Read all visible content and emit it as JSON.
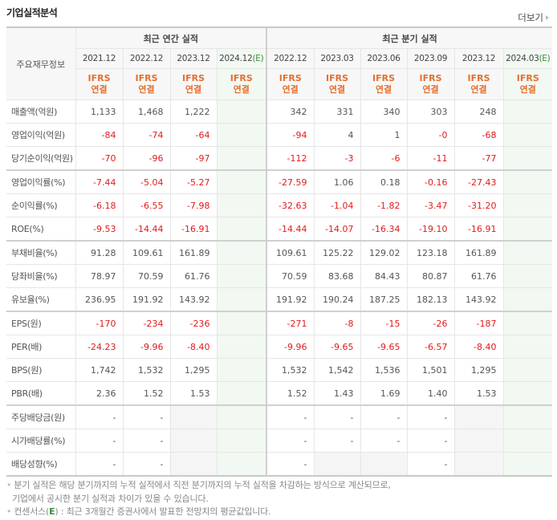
{
  "header": {
    "title": "기업실적분석",
    "more_label": "더보기"
  },
  "table": {
    "label_header": "주요재무정보",
    "groups": {
      "annual": "최근 연간 실적",
      "quarterly": "최근 분기 실적"
    },
    "annual_dates": [
      "2021.12",
      "2022.12",
      "2023.12",
      "2024.12"
    ],
    "quarterly_dates": [
      "2022.12",
      "2023.03",
      "2023.06",
      "2023.09",
      "2023.12",
      "2024.03"
    ],
    "estimate_mark": "(E)",
    "ifrs_line1": "IFRS",
    "ifrs_line2": "연결",
    "rows": [
      {
        "label": "매출액(억원)",
        "annual": [
          "1,133",
          "1,468",
          "1,222",
          ""
        ],
        "quarterly": [
          "342",
          "331",
          "340",
          "303",
          "248",
          ""
        ]
      },
      {
        "label": "영업이익(억원)",
        "annual": [
          "-84",
          "-74",
          "-64",
          ""
        ],
        "quarterly": [
          "-94",
          "4",
          "1",
          "-0",
          "-68",
          ""
        ]
      },
      {
        "label": "당기순이익(억원)",
        "annual": [
          "-70",
          "-96",
          "-97",
          ""
        ],
        "quarterly": [
          "-112",
          "-3",
          "-6",
          "-11",
          "-77",
          ""
        ]
      },
      {
        "label": "영업이익률(%)",
        "annual": [
          "-7.44",
          "-5.04",
          "-5.27",
          ""
        ],
        "quarterly": [
          "-27.59",
          "1.06",
          "0.18",
          "-0.16",
          "-27.43",
          ""
        ]
      },
      {
        "label": "순이익률(%)",
        "annual": [
          "-6.18",
          "-6.55",
          "-7.98",
          ""
        ],
        "quarterly": [
          "-32.63",
          "-1.04",
          "-1.82",
          "-3.47",
          "-31.20",
          ""
        ]
      },
      {
        "label": "ROE(%)",
        "annual": [
          "-9.53",
          "-14.44",
          "-16.91",
          ""
        ],
        "quarterly": [
          "-14.44",
          "-14.07",
          "-16.34",
          "-19.10",
          "-16.91",
          ""
        ]
      },
      {
        "label": "부채비율(%)",
        "annual": [
          "91.28",
          "109.61",
          "161.89",
          ""
        ],
        "quarterly": [
          "109.61",
          "125.22",
          "129.02",
          "123.18",
          "161.89",
          ""
        ]
      },
      {
        "label": "당좌비율(%)",
        "annual": [
          "78.97",
          "70.59",
          "61.76",
          ""
        ],
        "quarterly": [
          "70.59",
          "83.68",
          "84.43",
          "80.87",
          "61.76",
          ""
        ]
      },
      {
        "label": "유보율(%)",
        "annual": [
          "236.95",
          "191.92",
          "143.92",
          ""
        ],
        "quarterly": [
          "191.92",
          "190.24",
          "187.25",
          "182.13",
          "143.92",
          ""
        ]
      },
      {
        "label": "EPS(원)",
        "annual": [
          "-170",
          "-234",
          "-236",
          ""
        ],
        "quarterly": [
          "-271",
          "-8",
          "-15",
          "-26",
          "-187",
          ""
        ]
      },
      {
        "label": "PER(배)",
        "annual": [
          "-24.23",
          "-9.96",
          "-8.40",
          ""
        ],
        "quarterly": [
          "-9.96",
          "-9.65",
          "-9.65",
          "-6.57",
          "-8.40",
          ""
        ]
      },
      {
        "label": "BPS(원)",
        "annual": [
          "1,742",
          "1,532",
          "1,295",
          ""
        ],
        "quarterly": [
          "1,532",
          "1,542",
          "1,536",
          "1,501",
          "1,295",
          ""
        ]
      },
      {
        "label": "PBR(배)",
        "annual": [
          "2.36",
          "1.52",
          "1.53",
          ""
        ],
        "quarterly": [
          "1.52",
          "1.43",
          "1.69",
          "1.40",
          "1.53",
          ""
        ]
      },
      {
        "label": "주당배당금(원)",
        "annual": [
          "-",
          "-",
          "",
          ""
        ],
        "quarterly": [
          "-",
          "-",
          "-",
          "-",
          "",
          ""
        ]
      },
      {
        "label": "시가배당률(%)",
        "annual": [
          "-",
          "-",
          "",
          ""
        ],
        "quarterly": [
          "-",
          "-",
          "-",
          "-",
          "",
          ""
        ]
      },
      {
        "label": "배당성향(%)",
        "annual": [
          "-",
          "-",
          "",
          ""
        ],
        "quarterly": [
          "-",
          "",
          "",
          "-",
          "",
          ""
        ]
      }
    ]
  },
  "notes": {
    "line1": "분기 실적은 해당 분기까지의 누적 실적에서 직전 분기까지의 누적 실적을 차감하는 방식으로 계산되므로,",
    "line2": "기업에서 공시한 분기 실적과 차이가 있을 수 있습니다.",
    "line3_prefix": "컨센서스(",
    "line3_mark": "E",
    "line3_suffix": ") : 최근 3개월간 증권사에서 발표한 전망치의 평균값입니다."
  },
  "colors": {
    "negative": "#e31a1a",
    "ifrs": "#e56f2d",
    "estimate_bg": "#f2f8f2",
    "estimate_mark": "#3a8f3a"
  }
}
